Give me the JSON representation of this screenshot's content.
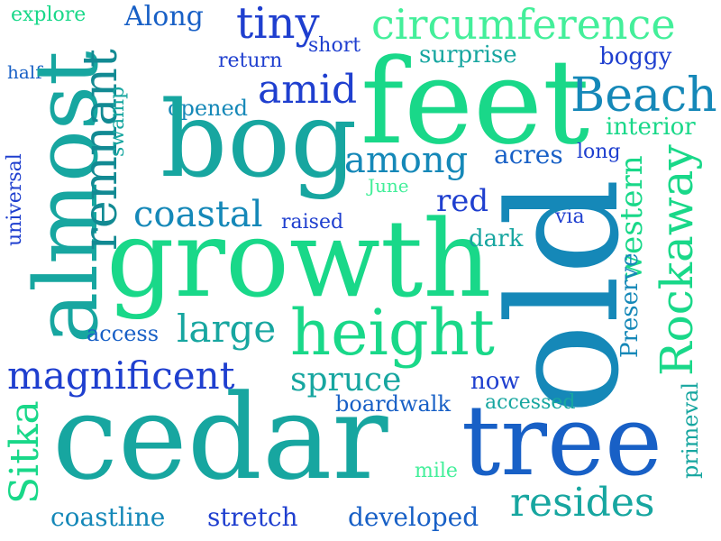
{
  "wordcloud": {
    "colors": {
      "blue": "#1f3fcf",
      "mid_blue": "#1860c6",
      "teal_blue": "#1588b8",
      "teal": "#17a6a0",
      "green": "#19d889",
      "light_green": "#43ef9a",
      "dark_teal": "#128a93"
    },
    "words": [
      {
        "id": "explore",
        "text": "explore"
      },
      {
        "id": "along",
        "text": "Along"
      },
      {
        "id": "tiny",
        "text": "tiny"
      },
      {
        "id": "short",
        "text": "short"
      },
      {
        "id": "circumference",
        "text": "circumference"
      },
      {
        "id": "half",
        "text": "half"
      },
      {
        "id": "return",
        "text": "return"
      },
      {
        "id": "surprise",
        "text": "surprise"
      },
      {
        "id": "boggy",
        "text": "boggy"
      },
      {
        "id": "amid",
        "text": "amid"
      },
      {
        "id": "feet",
        "text": "feet"
      },
      {
        "id": "beach",
        "text": "Beach"
      },
      {
        "id": "opened",
        "text": "opened"
      },
      {
        "id": "interior",
        "text": "interior"
      },
      {
        "id": "bog",
        "text": "bog"
      },
      {
        "id": "among",
        "text": "among"
      },
      {
        "id": "acres",
        "text": "acres"
      },
      {
        "id": "long",
        "text": "long"
      },
      {
        "id": "almost",
        "text": "almost"
      },
      {
        "id": "remnant",
        "text": "remnant"
      },
      {
        "id": "swamp",
        "text": "swamp"
      },
      {
        "id": "universal",
        "text": "universal"
      },
      {
        "id": "june",
        "text": "June"
      },
      {
        "id": "red",
        "text": "red"
      },
      {
        "id": "coastal",
        "text": "coastal"
      },
      {
        "id": "raised",
        "text": "raised"
      },
      {
        "id": "via",
        "text": "via"
      },
      {
        "id": "growth",
        "text": "growth"
      },
      {
        "id": "dark",
        "text": "dark"
      },
      {
        "id": "old",
        "text": "old"
      },
      {
        "id": "western",
        "text": "western"
      },
      {
        "id": "rockaway",
        "text": "Rockaway"
      },
      {
        "id": "preserve",
        "text": "Preserve"
      },
      {
        "id": "height",
        "text": "height"
      },
      {
        "id": "large",
        "text": "large"
      },
      {
        "id": "access",
        "text": "access"
      },
      {
        "id": "magnificent",
        "text": "magnificent"
      },
      {
        "id": "spruce",
        "text": "spruce"
      },
      {
        "id": "now",
        "text": "now"
      },
      {
        "id": "boardwalk",
        "text": "boardwalk"
      },
      {
        "id": "accessed",
        "text": "accessed"
      },
      {
        "id": "sitka",
        "text": "Sitka"
      },
      {
        "id": "cedar",
        "text": "cedar"
      },
      {
        "id": "tree",
        "text": "tree"
      },
      {
        "id": "primeval",
        "text": "primeval"
      },
      {
        "id": "mile",
        "text": "mile"
      },
      {
        "id": "resides",
        "text": "resides"
      },
      {
        "id": "coastline",
        "text": "coastline"
      },
      {
        "id": "stretch",
        "text": "stretch"
      },
      {
        "id": "developed",
        "text": "developed"
      }
    ]
  }
}
